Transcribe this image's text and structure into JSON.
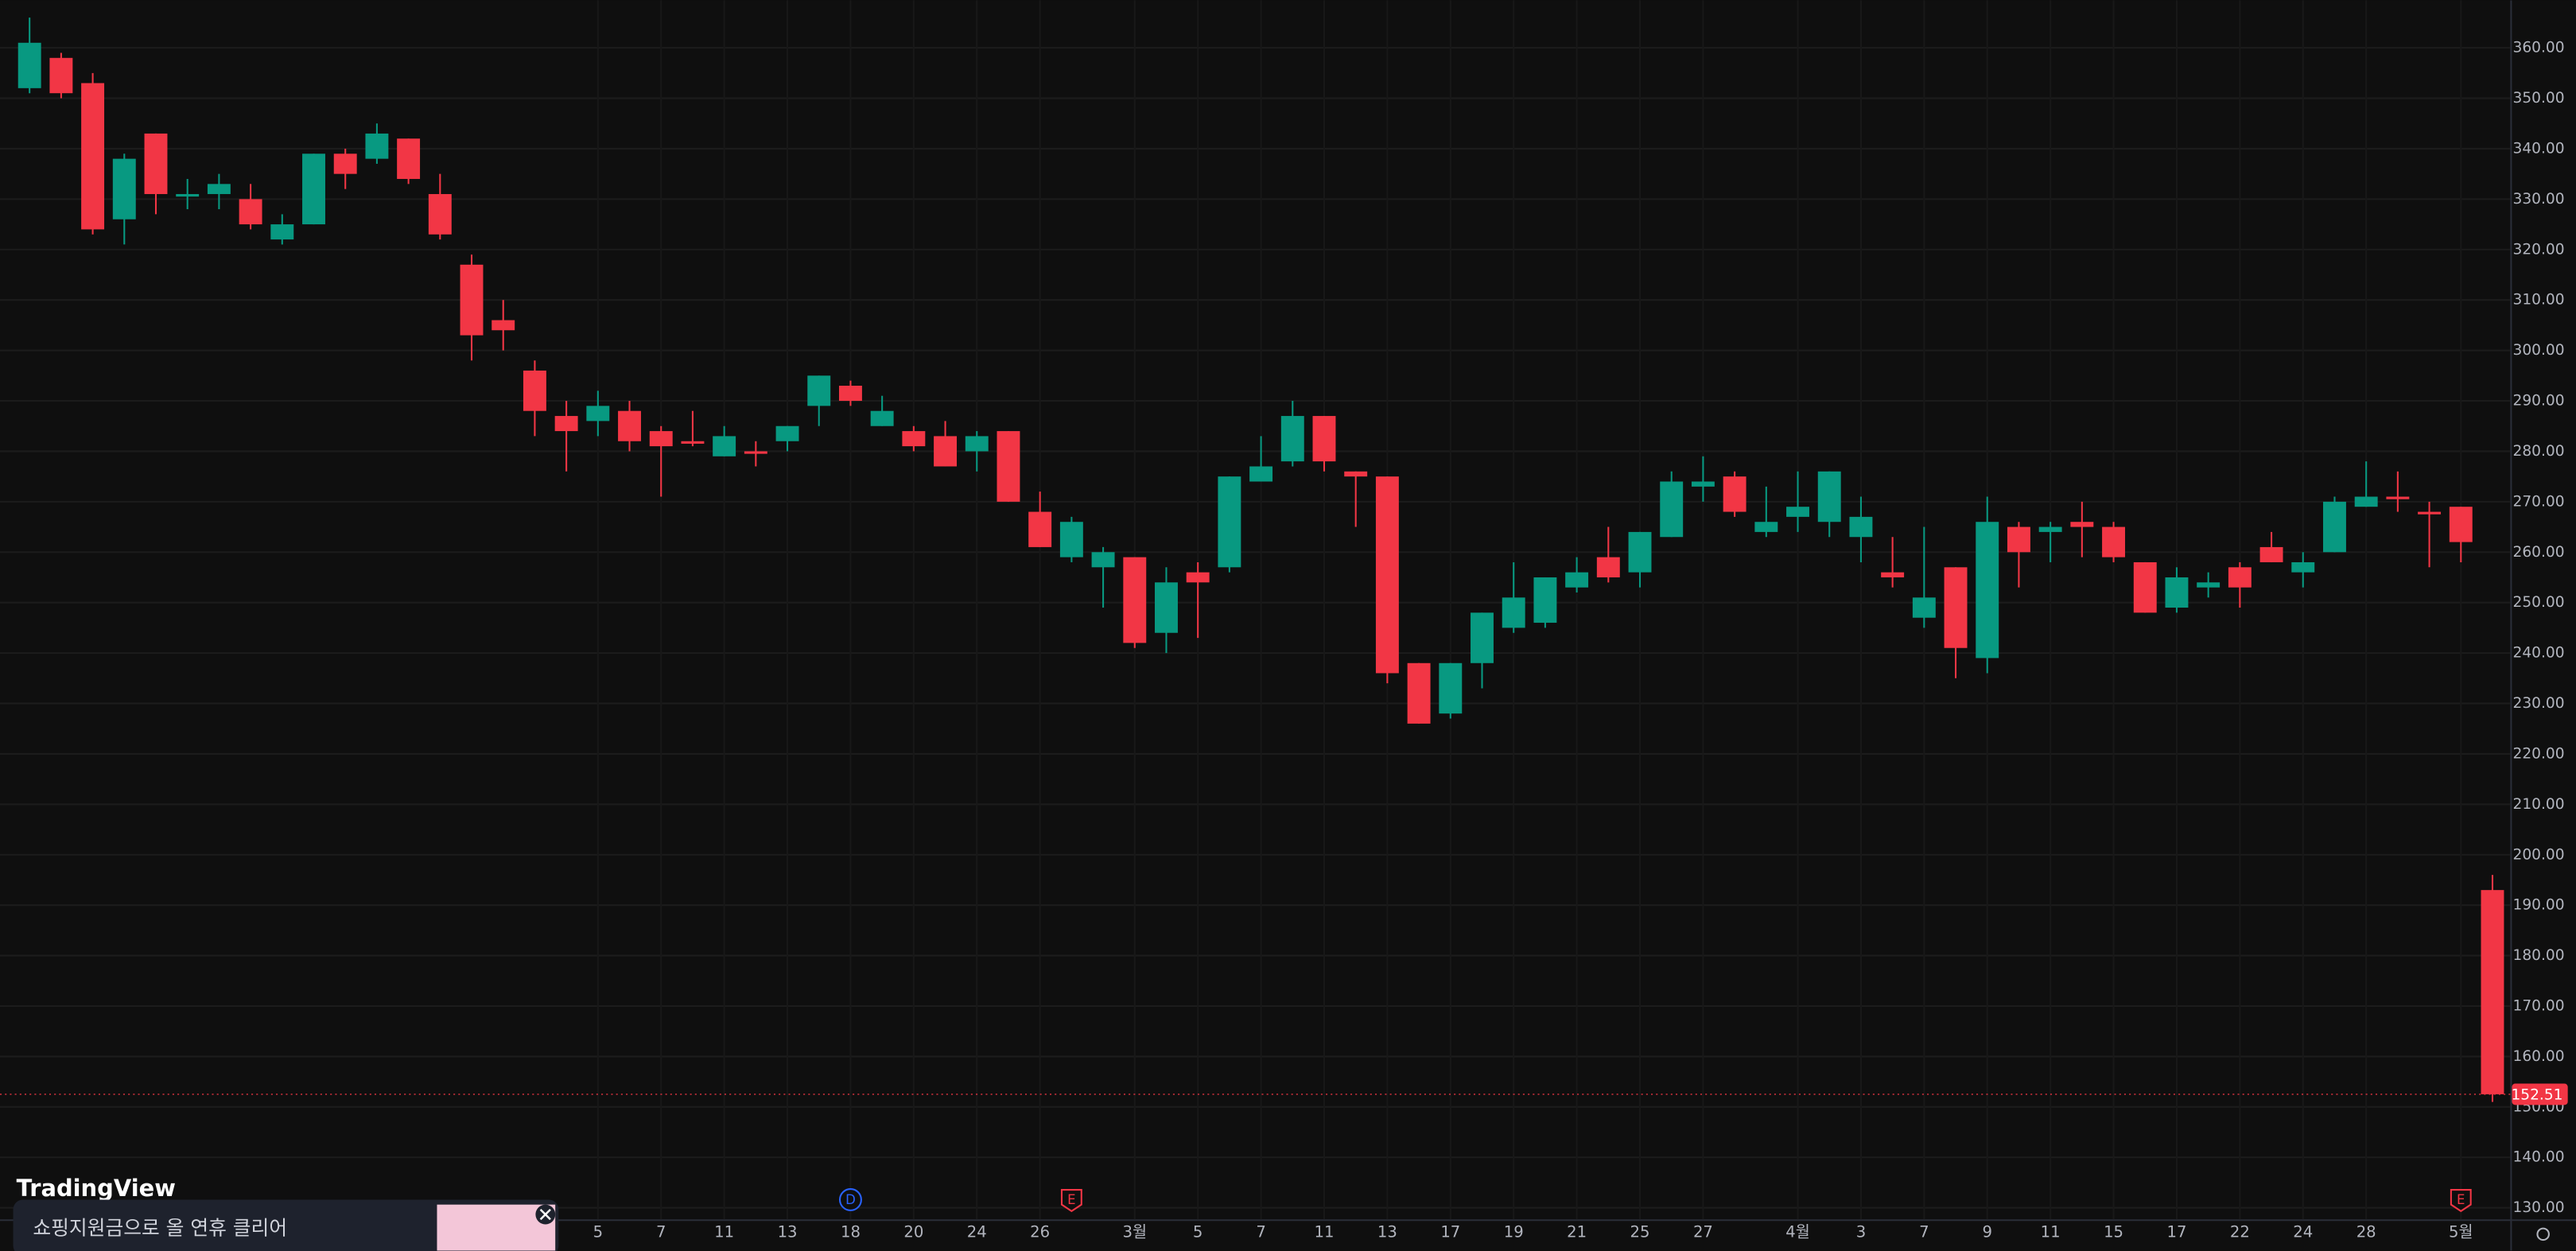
{
  "chart_data": {
    "type": "candlestick",
    "categories": [
      null,
      null,
      null,
      null,
      null,
      null,
      null,
      null,
      null,
      null,
      null,
      null,
      null,
      null,
      null,
      null,
      null,
      null,
      "5",
      null,
      "7",
      null,
      "11",
      null,
      "13",
      null,
      "18",
      null,
      "20",
      null,
      "24",
      null,
      "26",
      null,
      null,
      "3월",
      null,
      "5",
      null,
      "7",
      null,
      "11",
      null,
      "13",
      null,
      "17",
      null,
      "19",
      null,
      "21",
      null,
      "25",
      null,
      "27",
      null,
      null,
      "4월",
      null,
      "3",
      null,
      "7",
      null,
      "9",
      null,
      "11",
      null,
      "15",
      null,
      "17",
      null,
      "22",
      null,
      "24",
      null,
      "28",
      null,
      null,
      "5월",
      null
    ],
    "open": [
      352,
      358,
      353,
      326,
      343,
      330.5,
      331,
      330,
      322,
      325,
      339,
      338,
      342,
      331,
      317,
      306,
      296,
      287,
      286,
      288,
      284,
      282,
      279,
      280,
      282,
      289,
      293,
      285,
      284,
      283,
      280,
      284,
      268,
      259,
      257,
      259,
      244,
      256,
      257,
      274,
      278,
      287,
      276,
      275,
      238,
      228,
      238,
      245,
      246,
      253,
      259,
      256,
      263,
      273,
      275,
      264,
      267,
      266,
      263,
      256,
      247,
      257,
      239,
      265,
      264,
      266,
      265,
      258,
      249,
      253,
      257,
      261,
      256,
      260,
      269,
      271,
      268,
      269,
      193
    ],
    "high": [
      366,
      359,
      355,
      339,
      343,
      334,
      335,
      333,
      327,
      339,
      340,
      345,
      342,
      335,
      319,
      310,
      298,
      290,
      292,
      290,
      285,
      288,
      285,
      282,
      285,
      295,
      294,
      291,
      285,
      286,
      284,
      284,
      272,
      267,
      261,
      259,
      257,
      258,
      275,
      283,
      290,
      287,
      276,
      275,
      238,
      238,
      248,
      258,
      255,
      259,
      265,
      264,
      276,
      279,
      276,
      273,
      276,
      276,
      271,
      263,
      265,
      257,
      271,
      266,
      266,
      270,
      266,
      258,
      257,
      256,
      258,
      264,
      260,
      271,
      278,
      276,
      270,
      269,
      196
    ],
    "low": [
      351,
      350,
      323,
      321,
      327,
      328,
      328,
      324,
      321,
      325,
      332,
      337,
      333,
      322,
      298,
      300,
      283,
      276,
      283,
      280,
      271,
      281,
      279,
      277,
      280,
      285,
      289,
      285,
      280,
      277,
      276,
      270,
      261,
      258,
      249,
      241,
      240,
      243,
      256,
      274,
      277,
      276,
      265,
      234,
      226,
      227,
      233,
      244,
      245,
      252,
      254,
      253,
      263,
      270,
      267,
      263,
      264,
      263,
      258,
      253,
      245,
      235,
      236,
      253,
      258,
      259,
      258,
      248,
      248,
      251,
      249,
      258,
      253,
      260,
      269,
      268,
      257,
      258,
      151
    ],
    "close": [
      361,
      351,
      324,
      338,
      331,
      331,
      333,
      325,
      325,
      339,
      335,
      343,
      334,
      323,
      303,
      304,
      288,
      284,
      289,
      282,
      281,
      281.5,
      283,
      279.5,
      285,
      295,
      290,
      288,
      281,
      277,
      283,
      270,
      261,
      266,
      260,
      242,
      254,
      254,
      275,
      277,
      287,
      278,
      275,
      236,
      226,
      238,
      248,
      251,
      255,
      256,
      255,
      264,
      274,
      274,
      268,
      266,
      269,
      276,
      267,
      255,
      251,
      241,
      266,
      260,
      265,
      265,
      259,
      248,
      255,
      254,
      253,
      258,
      258,
      270,
      271,
      270.5,
      267.5,
      262,
      152.51
    ],
    "up_color": "#089981",
    "down_color": "#f23645",
    "ylim": [
      127.7,
      369.4
    ],
    "yticks": [
      {
        "value": 130,
        "label": "130.00"
      },
      {
        "value": 140,
        "label": "140.00"
      },
      {
        "value": 150,
        "label": "150.00"
      },
      {
        "value": 160,
        "label": "160.00"
      },
      {
        "value": 170,
        "label": "170.00"
      },
      {
        "value": 180,
        "label": "180.00"
      },
      {
        "value": 190,
        "label": "190.00"
      },
      {
        "value": 200,
        "label": "200.00"
      },
      {
        "value": 210,
        "label": "210.00"
      },
      {
        "value": 220,
        "label": "220.00"
      },
      {
        "value": 230,
        "label": "230.00"
      },
      {
        "value": 240,
        "label": "240.00"
      },
      {
        "value": 250,
        "label": "250.00"
      },
      {
        "value": 260,
        "label": "260.00"
      },
      {
        "value": 270,
        "label": "270.00"
      },
      {
        "value": 280,
        "label": "280.00"
      },
      {
        "value": 290,
        "label": "290.00"
      },
      {
        "value": 300,
        "label": "300.00"
      },
      {
        "value": 310,
        "label": "310.00"
      },
      {
        "value": 320,
        "label": "320.00"
      },
      {
        "value": 330,
        "label": "330.00"
      },
      {
        "value": 340,
        "label": "340.00"
      },
      {
        "value": 350,
        "label": "350.00"
      },
      {
        "value": 360,
        "label": "360.00"
      }
    ],
    "grid": true,
    "last_price": 152.51,
    "events": [
      {
        "category_index": 26,
        "label": "D",
        "color": "#2962ff"
      },
      {
        "category_index": 33,
        "label": "E",
        "color": "#f23645"
      },
      {
        "category_index": 77,
        "label": "E",
        "color": "#f23645"
      }
    ]
  },
  "logo": "TradingView",
  "ad": {
    "text": "쇼핑지원금으로 올 연휴 클리어"
  }
}
